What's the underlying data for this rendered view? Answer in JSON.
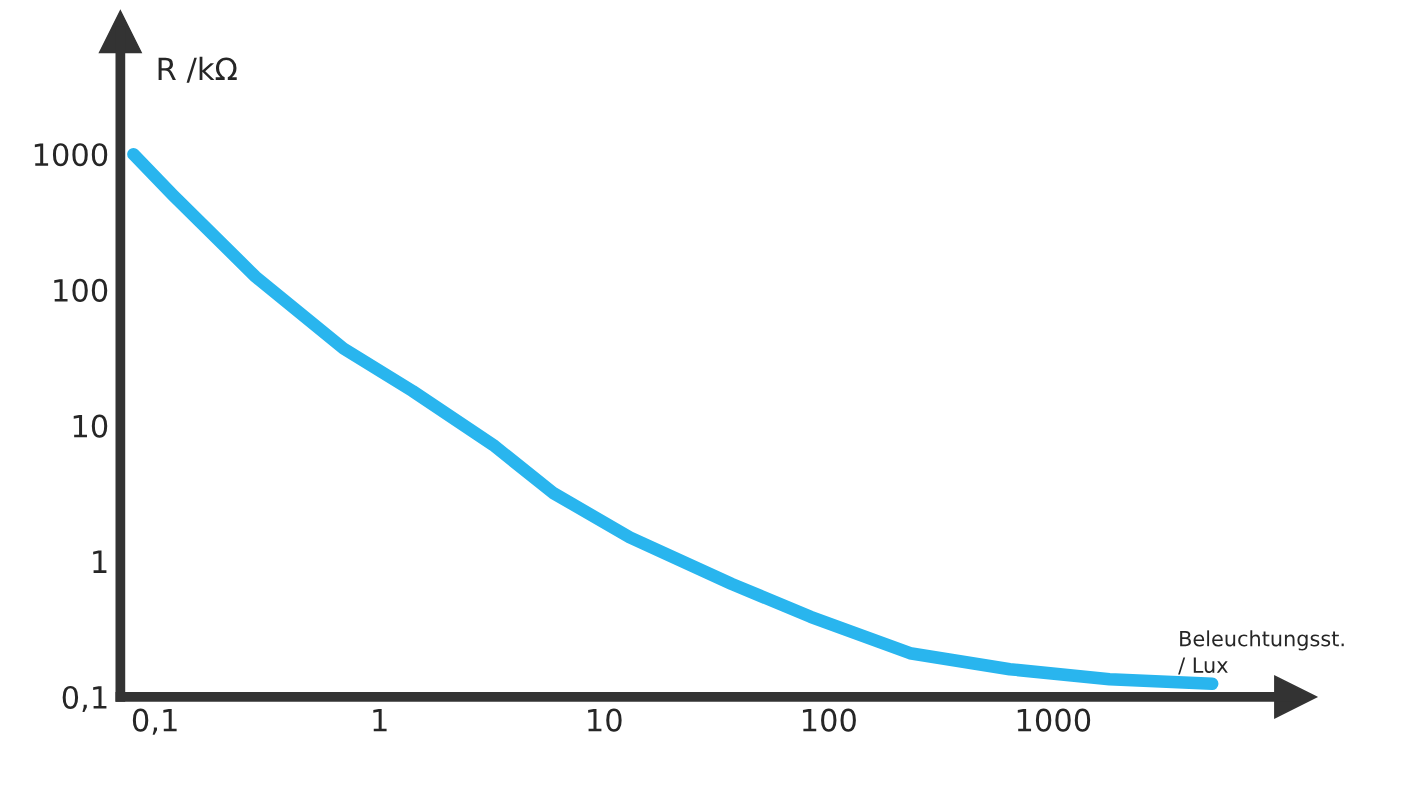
{
  "chart_data": {
    "type": "line",
    "xlabel": "Beleuchtungsst.\n/ Lux",
    "ylabel": "R /kΩ",
    "log": "xy",
    "grid": false,
    "line_style": "solid",
    "x": [
      0.08,
      0.12,
      0.28,
      0.69,
      1.4,
      3.2,
      5.9,
      13,
      37,
      83,
      230,
      640,
      1780,
      5100
    ],
    "series": [
      {
        "color": "#29b5ee",
        "values": [
          1000,
          500,
          125,
          37,
          18,
          7.2,
          3.2,
          1.5,
          0.68,
          0.39,
          0.21,
          0.16,
          0.135,
          0.125
        ]
      }
    ],
    "xlim": [
      0.07,
      12000
    ],
    "ylim": [
      0.1,
      8000
    ],
    "xticks": [
      {
        "value": 0.1,
        "label": "0,1"
      },
      1,
      10,
      100,
      1000
    ],
    "yticks": [
      {
        "value": 0.1,
        "label": "0,1"
      },
      1,
      10,
      100,
      1000
    ]
  }
}
